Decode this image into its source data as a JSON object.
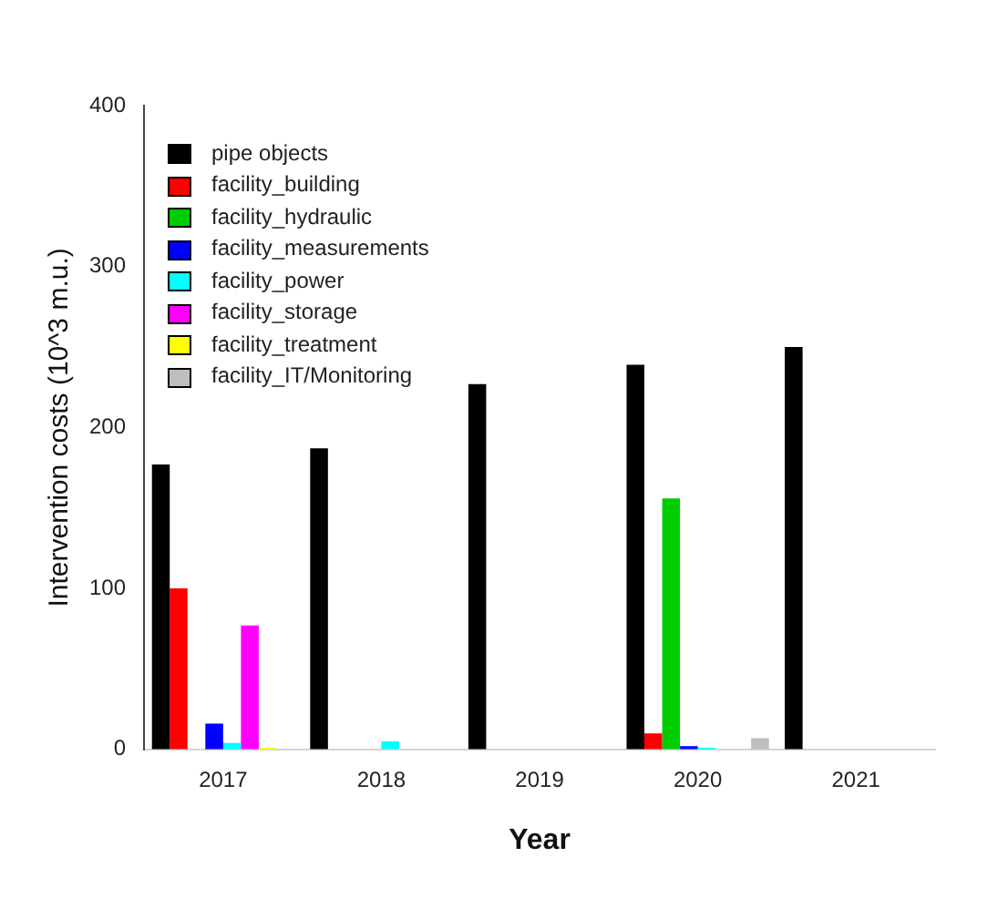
{
  "chart_data": {
    "type": "bar",
    "xlabel": "Year",
    "ylabel": "Intervention costs (10^3 m.u.)",
    "categories": [
      "2017",
      "2018",
      "2019",
      "2020",
      "2021"
    ],
    "series": [
      {
        "name": "pipe objects",
        "color": "#000000",
        "values": [
          177,
          187,
          227,
          239,
          250
        ]
      },
      {
        "name": "facility_building",
        "color": "#ff0000",
        "values": [
          100,
          0,
          0,
          10,
          0
        ]
      },
      {
        "name": "facility_hydraulic",
        "color": "#00cd00",
        "values": [
          0,
          0,
          0,
          156,
          0
        ]
      },
      {
        "name": "facility_measurements",
        "color": "#0000ff",
        "values": [
          16,
          0,
          0,
          2,
          0
        ]
      },
      {
        "name": "facility_power",
        "color": "#00ffff",
        "values": [
          4,
          5,
          0,
          1,
          0
        ]
      },
      {
        "name": "facility_storage",
        "color": "#ff00ff",
        "values": [
          77,
          0,
          0,
          0,
          0
        ]
      },
      {
        "name": "facility_treatment",
        "color": "#ffff00",
        "values": [
          1,
          0,
          0,
          0,
          0
        ]
      },
      {
        "name": "facility_IT/Monitoring",
        "color": "#bebebe",
        "values": [
          0,
          0,
          0,
          7,
          0
        ]
      }
    ],
    "ylim": [
      0,
      400
    ],
    "yticks": [
      0,
      100,
      200,
      300,
      400
    ],
    "grid": false,
    "legend": "top left"
  }
}
